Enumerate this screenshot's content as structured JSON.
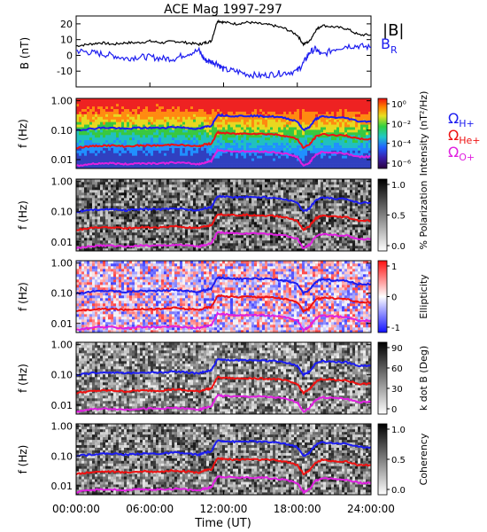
{
  "chart_data": [
    {
      "type": "line",
      "title": "ACE Mag 1997-297",
      "ylabel": "B (nT)",
      "ylim": [
        -20,
        25
      ],
      "yticks": [
        "20",
        "10",
        "0",
        "-10"
      ],
      "legend": {
        "placement": "right",
        "entries": [
          "|B|",
          "BR"
        ]
      },
      "series": [
        {
          "name": "|B|",
          "color": "#000000",
          "x": [
            0,
            1,
            2,
            3,
            4,
            5,
            6,
            7,
            8,
            9,
            10,
            10.5,
            11,
            11.5,
            12,
            13,
            14,
            15,
            16,
            17,
            18,
            18.5,
            19,
            19.5,
            20,
            21,
            22,
            23,
            24
          ],
          "y": [
            6,
            7,
            8,
            7,
            8,
            8,
            9,
            8,
            9,
            8,
            7,
            8,
            9,
            22,
            21,
            20,
            21,
            20,
            19,
            17,
            13,
            7,
            9,
            16,
            19,
            18,
            17,
            13,
            13
          ]
        },
        {
          "name": "BR",
          "color": "#1c1cf0",
          "x": [
            0,
            1,
            2,
            3,
            4,
            5,
            6,
            7,
            8,
            9,
            10,
            10.5,
            11,
            11.5,
            12,
            13,
            14,
            15,
            16,
            17,
            18,
            18.5,
            19,
            19.5,
            20,
            21,
            22,
            23,
            24
          ],
          "y": [
            3,
            2,
            1,
            0,
            -2,
            -1,
            -1,
            -2,
            -2,
            1,
            3,
            -3,
            -4,
            -5,
            -9,
            -10,
            -12,
            -13,
            -12,
            -11,
            -10,
            -5,
            2,
            4,
            0,
            4,
            6,
            6,
            5
          ]
        }
      ]
    },
    {
      "type": "heatmap",
      "ylabel": "f (Hz)",
      "yticks": [
        "1.00",
        "0.10",
        "0.01"
      ],
      "colorbar": {
        "label": "Intensity (nT²/Hz)",
        "ticks": [
          "10⁰",
          "10⁻²",
          "10⁻⁴",
          "10⁻⁶"
        ],
        "scale": "rainbow"
      },
      "legend": {
        "placement": "right",
        "entries": [
          "ΩH+",
          "ΩHe+",
          "ΩO+"
        ]
      }
    },
    {
      "type": "heatmap",
      "ylabel": "f (Hz)",
      "yticks": [
        "1.00",
        "0.10",
        "0.01"
      ],
      "colorbar": {
        "label": "% Polarization",
        "ticks": [
          "1.0",
          "0.5",
          "0.0"
        ],
        "scale": "gray"
      }
    },
    {
      "type": "heatmap",
      "ylabel": "f (Hz)",
      "yticks": [
        "1.00",
        "0.10",
        "0.01"
      ],
      "colorbar": {
        "label": "Ellipticity",
        "ticks": [
          "1",
          "0",
          "-1"
        ],
        "scale": "bwr"
      }
    },
    {
      "type": "heatmap",
      "ylabel": "f (Hz)",
      "yticks": [
        "1.00",
        "0.10",
        "0.01"
      ],
      "colorbar": {
        "label": "k dot B (Deg)",
        "ticks": [
          "90",
          "60",
          "30",
          "0"
        ],
        "scale": "gray"
      }
    },
    {
      "type": "heatmap",
      "ylabel": "f (Hz)",
      "yticks": [
        "1.00",
        "0.10",
        "0.01"
      ],
      "colorbar": {
        "label": "Coherency",
        "ticks": [
          "1.0",
          "0.5",
          "0.0"
        ],
        "scale": "gray"
      }
    }
  ],
  "gyrofrequencies": {
    "x": [
      0,
      1,
      2,
      3,
      4,
      5,
      6,
      7,
      8,
      9,
      10,
      10.5,
      11,
      11.5,
      12,
      13,
      14,
      15,
      16,
      17,
      18,
      18.5,
      19,
      19.5,
      20,
      21,
      22,
      23,
      24
    ],
    "H": {
      "label": "ΩH+",
      "color": "#1c1cf0",
      "y": [
        0.1,
        0.11,
        0.12,
        0.12,
        0.11,
        0.12,
        0.12,
        0.12,
        0.13,
        0.12,
        0.11,
        0.13,
        0.14,
        0.33,
        0.32,
        0.3,
        0.31,
        0.3,
        0.29,
        0.26,
        0.2,
        0.1,
        0.13,
        0.24,
        0.29,
        0.27,
        0.26,
        0.2,
        0.2
      ]
    },
    "He": {
      "label": "ΩHe+",
      "color": "#ee1111",
      "y": [
        0.025,
        0.028,
        0.03,
        0.03,
        0.028,
        0.03,
        0.03,
        0.03,
        0.033,
        0.03,
        0.028,
        0.033,
        0.035,
        0.083,
        0.08,
        0.075,
        0.078,
        0.075,
        0.073,
        0.065,
        0.05,
        0.025,
        0.033,
        0.06,
        0.073,
        0.068,
        0.065,
        0.05,
        0.05
      ]
    },
    "O": {
      "label": "ΩO+",
      "color": "#e020e0",
      "y": [
        0.006,
        0.007,
        0.0075,
        0.0075,
        0.007,
        0.0075,
        0.0075,
        0.0075,
        0.008,
        0.0075,
        0.007,
        0.008,
        0.009,
        0.021,
        0.02,
        0.019,
        0.019,
        0.019,
        0.018,
        0.016,
        0.0125,
        0.006,
        0.008,
        0.015,
        0.018,
        0.017,
        0.016,
        0.0125,
        0.0125
      ]
    }
  },
  "x_axis": {
    "label": "Time (UT)",
    "range": [
      0,
      24
    ],
    "ticks": [
      {
        "t": 0,
        "label": "00:00:00"
      },
      {
        "t": 6,
        "label": "06:00:00"
      },
      {
        "t": 12,
        "label": "12:00:00"
      },
      {
        "t": 18,
        "label": "18:00:00"
      },
      {
        "t": 24,
        "label": "24:00:00"
      }
    ]
  }
}
